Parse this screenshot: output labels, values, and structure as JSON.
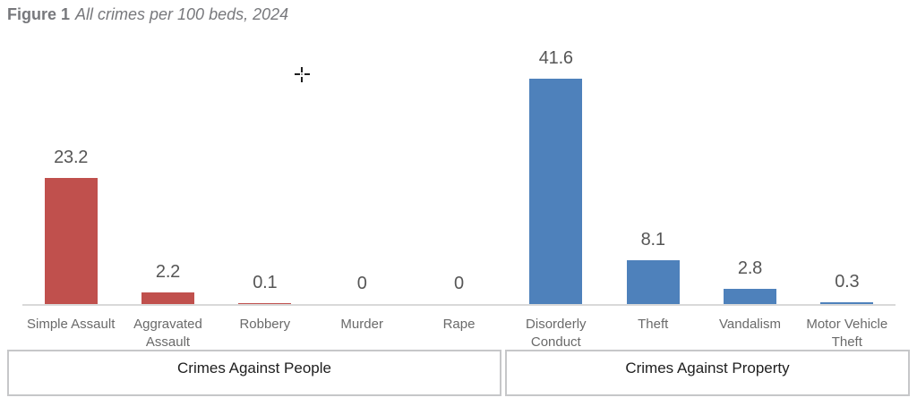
{
  "figure": {
    "label": "Figure 1",
    "title": "All crimes per 100 beds, 2024"
  },
  "chart_data": {
    "type": "bar",
    "title": "All crimes per 100 beds, 2024",
    "categories": [
      "Simple Assault",
      "Aggravated Assault",
      "Robbery",
      "Murder",
      "Rape",
      "Disorderly Conduct",
      "Theft",
      "Vandalism",
      "Motor Vehicle Theft"
    ],
    "values": [
      23.2,
      2.2,
      0.1,
      0,
      0,
      41.6,
      8.1,
      2.8,
      0.3
    ],
    "value_labels": [
      "23.2",
      "2.2",
      "0.1",
      "0",
      "0",
      "41.6",
      "8.1",
      "2.8",
      "0.3"
    ],
    "groups": [
      {
        "label": "Crimes Against People",
        "count": 5,
        "color": "#c0504d"
      },
      {
        "label": "Crimes Against Property",
        "count": 4,
        "color": "#4e81bb"
      }
    ],
    "xlabel": "",
    "ylabel": "",
    "ylim": [
      0,
      44
    ],
    "grid": false,
    "legend": false,
    "data_labels_position": "outside-end",
    "axis_line_color": "#d9d9d9"
  }
}
